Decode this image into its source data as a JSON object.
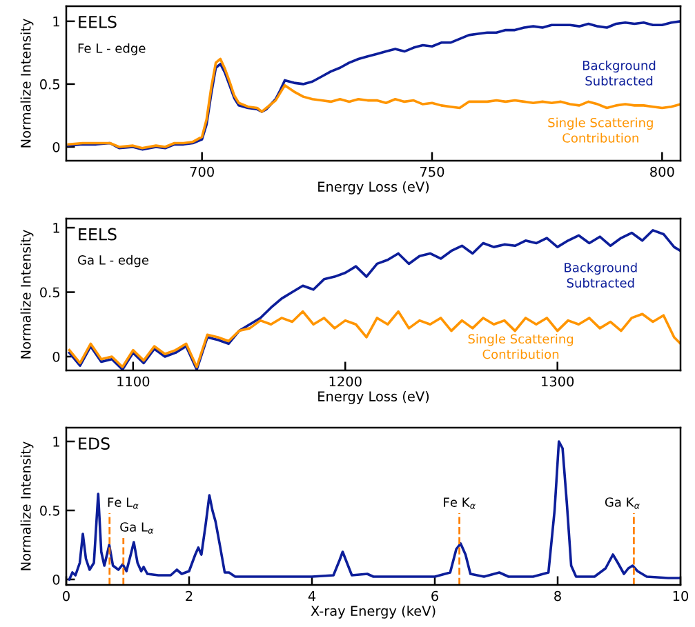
{
  "chart_data": [
    {
      "type": "line",
      "title": "EELS",
      "subtitle": "Fe L - edge",
      "xlabel": "Energy Loss (eV)",
      "ylabel": "Normalize Intensity",
      "x": [
        671,
        674,
        677,
        680,
        682,
        685,
        687,
        690,
        692,
        694,
        696,
        698,
        700,
        701,
        702,
        703,
        704,
        705,
        706,
        707,
        708,
        710,
        712,
        713,
        714,
        716,
        717,
        718,
        720,
        722,
        724,
        726,
        728,
        730,
        732,
        734,
        736,
        738,
        740,
        742,
        744,
        746,
        748,
        750,
        752,
        754,
        756,
        758,
        760,
        762,
        764,
        766,
        768,
        770,
        772,
        774,
        776,
        778,
        780,
        782,
        784,
        786,
        788,
        790,
        792,
        794,
        796,
        798,
        800,
        802,
        804
      ],
      "series": [
        {
          "name": "Background\nSubtracted",
          "color": "#0d1e9a",
          "values": [
            0.01,
            0.02,
            0.02,
            0.03,
            -0.01,
            0.0,
            -0.02,
            0.0,
            -0.01,
            0.02,
            0.02,
            0.03,
            0.06,
            0.18,
            0.42,
            0.63,
            0.66,
            0.59,
            0.49,
            0.39,
            0.33,
            0.31,
            0.3,
            0.28,
            0.3,
            0.38,
            0.45,
            0.53,
            0.51,
            0.5,
            0.52,
            0.56,
            0.6,
            0.63,
            0.67,
            0.7,
            0.72,
            0.74,
            0.76,
            0.78,
            0.76,
            0.79,
            0.81,
            0.8,
            0.83,
            0.83,
            0.86,
            0.89,
            0.9,
            0.91,
            0.91,
            0.93,
            0.93,
            0.95,
            0.96,
            0.95,
            0.97,
            0.97,
            0.97,
            0.96,
            0.98,
            0.96,
            0.95,
            0.98,
            0.99,
            0.98,
            0.99,
            0.97,
            0.97,
            0.99,
            1.0
          ]
        },
        {
          "name": "Single Scattering\nContribution",
          "color": "#ff9500",
          "values": [
            0.02,
            0.03,
            0.03,
            0.03,
            0.0,
            0.01,
            -0.01,
            0.01,
            0.0,
            0.03,
            0.03,
            0.04,
            0.08,
            0.22,
            0.47,
            0.67,
            0.7,
            0.62,
            0.52,
            0.41,
            0.35,
            0.32,
            0.31,
            0.28,
            0.31,
            0.37,
            0.43,
            0.49,
            0.44,
            0.4,
            0.38,
            0.37,
            0.36,
            0.38,
            0.36,
            0.38,
            0.37,
            0.37,
            0.35,
            0.38,
            0.36,
            0.37,
            0.34,
            0.35,
            0.33,
            0.32,
            0.31,
            0.36,
            0.36,
            0.36,
            0.37,
            0.36,
            0.37,
            0.36,
            0.35,
            0.36,
            0.35,
            0.36,
            0.34,
            0.33,
            0.36,
            0.34,
            0.31,
            0.33,
            0.34,
            0.33,
            0.33,
            0.32,
            0.31,
            0.32,
            0.34
          ]
        }
      ],
      "xlim": [
        670.5,
        804
      ],
      "xticks": [
        700,
        750,
        800
      ],
      "ylim": [
        -0.11,
        1.12
      ],
      "yticks": [
        0,
        0.5,
        1
      ],
      "grid": false,
      "legend": false
    },
    {
      "type": "line",
      "title": "EELS",
      "subtitle": "Ga L - edge",
      "xlabel": "Energy Loss (eV)",
      "ylabel": "Normalize Intensity",
      "x": [
        1070,
        1075,
        1080,
        1085,
        1090,
        1095,
        1100,
        1105,
        1110,
        1115,
        1120,
        1125,
        1130,
        1135,
        1140,
        1145,
        1150,
        1155,
        1160,
        1165,
        1170,
        1175,
        1180,
        1185,
        1190,
        1195,
        1200,
        1205,
        1210,
        1215,
        1220,
        1225,
        1230,
        1235,
        1240,
        1245,
        1250,
        1255,
        1260,
        1265,
        1270,
        1275,
        1280,
        1285,
        1290,
        1295,
        1300,
        1305,
        1310,
        1315,
        1320,
        1325,
        1330,
        1335,
        1340,
        1345,
        1350,
        1355,
        1358
      ],
      "series": [
        {
          "name": "Background\nSubtracted",
          "color": "#0d1e9a",
          "values": [
            0.03,
            -0.07,
            0.08,
            -0.04,
            -0.02,
            -0.1,
            0.03,
            -0.05,
            0.06,
            0.0,
            0.03,
            0.08,
            -0.1,
            0.15,
            0.13,
            0.1,
            0.2,
            0.25,
            0.3,
            0.38,
            0.45,
            0.5,
            0.55,
            0.52,
            0.6,
            0.62,
            0.65,
            0.7,
            0.62,
            0.72,
            0.75,
            0.8,
            0.72,
            0.78,
            0.8,
            0.76,
            0.82,
            0.86,
            0.8,
            0.88,
            0.85,
            0.87,
            0.86,
            0.9,
            0.88,
            0.92,
            0.85,
            0.9,
            0.94,
            0.88,
            0.93,
            0.86,
            0.92,
            0.96,
            0.9,
            0.98,
            0.95,
            0.85,
            0.82
          ]
        },
        {
          "name": "Single Scattering\nContribution",
          "color": "#ff9500",
          "values": [
            0.05,
            -0.05,
            0.1,
            -0.02,
            0.0,
            -0.08,
            0.05,
            -0.03,
            0.08,
            0.02,
            0.05,
            0.1,
            -0.08,
            0.17,
            0.15,
            0.12,
            0.2,
            0.22,
            0.28,
            0.25,
            0.3,
            0.27,
            0.35,
            0.25,
            0.3,
            0.22,
            0.28,
            0.25,
            0.15,
            0.3,
            0.25,
            0.35,
            0.22,
            0.28,
            0.25,
            0.3,
            0.2,
            0.28,
            0.22,
            0.3,
            0.25,
            0.28,
            0.2,
            0.3,
            0.25,
            0.3,
            0.2,
            0.28,
            0.25,
            0.3,
            0.22,
            0.27,
            0.2,
            0.3,
            0.33,
            0.27,
            0.32,
            0.15,
            0.1
          ]
        }
      ],
      "xlim": [
        1068.5,
        1358
      ],
      "xticks": [
        1100,
        1200,
        1300
      ],
      "ylim": [
        -0.107,
        1.07
      ],
      "yticks": [
        0,
        0.5,
        1
      ],
      "grid": false,
      "legend": false
    },
    {
      "type": "line",
      "title": "EDS",
      "xlabel": "X-ray Energy (keV)",
      "ylabel": "Normalize Intensity",
      "x": [
        0.05,
        0.1,
        0.15,
        0.22,
        0.27,
        0.32,
        0.38,
        0.45,
        0.52,
        0.57,
        0.62,
        0.7,
        0.76,
        0.85,
        0.92,
        0.98,
        1.05,
        1.1,
        1.16,
        1.22,
        1.26,
        1.32,
        1.5,
        1.7,
        1.8,
        1.88,
        2.0,
        2.1,
        2.15,
        2.2,
        2.27,
        2.33,
        2.38,
        2.43,
        2.5,
        2.58,
        2.65,
        2.75,
        3.0,
        3.5,
        4.0,
        4.35,
        4.45,
        4.5,
        4.57,
        4.65,
        4.9,
        5.0,
        5.5,
        6.0,
        6.25,
        6.35,
        6.42,
        6.5,
        6.58,
        6.8,
        7.05,
        7.2,
        7.6,
        7.85,
        7.95,
        8.02,
        8.08,
        8.15,
        8.22,
        8.3,
        8.6,
        8.78,
        8.9,
        8.98,
        9.08,
        9.15,
        9.22,
        9.3,
        9.45,
        9.8,
        10.0
      ],
      "series": [
        {
          "color": "#0d1e9a",
          "values": [
            0.0,
            0.05,
            0.03,
            0.12,
            0.33,
            0.15,
            0.07,
            0.12,
            0.62,
            0.2,
            0.1,
            0.25,
            0.1,
            0.07,
            0.11,
            0.06,
            0.18,
            0.27,
            0.12,
            0.06,
            0.09,
            0.04,
            0.03,
            0.03,
            0.07,
            0.04,
            0.06,
            0.18,
            0.23,
            0.18,
            0.4,
            0.61,
            0.5,
            0.42,
            0.25,
            0.05,
            0.05,
            0.02,
            0.02,
            0.02,
            0.02,
            0.03,
            0.14,
            0.2,
            0.12,
            0.03,
            0.04,
            0.02,
            0.02,
            0.02,
            0.05,
            0.22,
            0.26,
            0.18,
            0.04,
            0.02,
            0.05,
            0.02,
            0.02,
            0.05,
            0.5,
            1.0,
            0.95,
            0.55,
            0.1,
            0.02,
            0.02,
            0.08,
            0.18,
            0.12,
            0.04,
            0.08,
            0.1,
            0.06,
            0.02,
            0.01,
            0.01
          ]
        }
      ],
      "ref_lines": [
        {
          "axis": "x",
          "value": 0.705,
          "color": "#ff8000",
          "line_style": "dashed"
        },
        {
          "axis": "x",
          "value": 0.93,
          "color": "#ff8000",
          "line_style": "dashed"
        },
        {
          "axis": "x",
          "value": 6.4,
          "color": "#ff8000",
          "line_style": "dashed"
        },
        {
          "axis": "x",
          "value": 9.24,
          "color": "#ff8000",
          "line_style": "dashed"
        }
      ],
      "annotations": [
        {
          "text": "Fe L$_{α}$",
          "x": 0.705,
          "y": 0.48
        },
        {
          "text": "Ga L$_{α}$",
          "x": 0.93,
          "y": 0.3
        },
        {
          "text": "Fe K$_{α}$",
          "x": 6.4,
          "y": 0.48
        },
        {
          "text": "Ga K$_{α}$",
          "x": 9.24,
          "y": 0.48
        }
      ],
      "xlim": [
        0,
        10
      ],
      "xticks": [
        0,
        2,
        4,
        6,
        8,
        10
      ],
      "ylim": [
        -0.04,
        1.1
      ],
      "yticks": [
        0,
        0.5,
        1
      ],
      "grid": false,
      "legend": false
    }
  ]
}
